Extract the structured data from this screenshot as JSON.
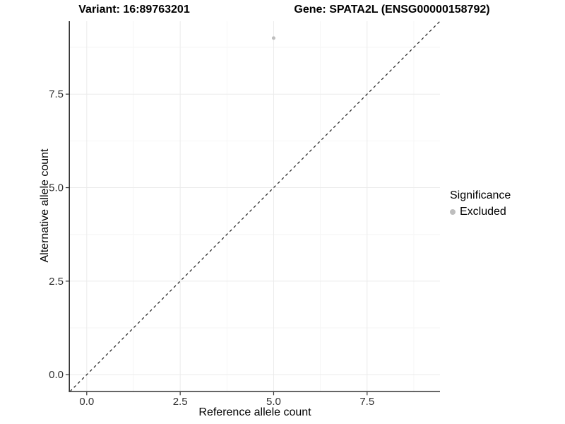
{
  "titles": {
    "variant": "Variant: 16:89763201",
    "gene": "Gene: SPATA2L (ENSG00000158792)"
  },
  "chart_data": {
    "type": "scatter",
    "xlabel": "Reference allele count",
    "ylabel": "Alternative allele count",
    "xlim": [
      -0.45,
      9.45
    ],
    "ylim": [
      -0.45,
      9.45
    ],
    "xtick_values": [
      0,
      2.5,
      5,
      7.5
    ],
    "xtick_labels": [
      "0.0",
      "2.5",
      "5.0",
      "7.5"
    ],
    "ytick_values": [
      0,
      2.5,
      5,
      7.5
    ],
    "ytick_labels": [
      "0.0",
      "2.5",
      "5.0",
      "7.5"
    ],
    "minor_tick_values": [
      1.25,
      3.75,
      6.25,
      8.75
    ],
    "grid": true,
    "points": [
      {
        "x": 5,
        "y": 9,
        "series": "Excluded",
        "radius": 2.5
      }
    ],
    "reference_line": {
      "type": "identity",
      "equation": "y = x",
      "style": "dashed"
    },
    "legend": {
      "title": "Significance",
      "position": "right",
      "items": [
        {
          "label": "Excluded",
          "color": "#bebebe",
          "marker": "circle"
        }
      ]
    }
  },
  "colors": {
    "background": "#ffffff",
    "grid_major": "#ebebeb",
    "grid_minor": "#f6f6f6",
    "axis_line": "#333333",
    "tick_mark": "#333333",
    "tick_text": "#303030",
    "title_text": "#000000",
    "point": "#bebebe",
    "dashed_line": "#1a1a1a"
  }
}
